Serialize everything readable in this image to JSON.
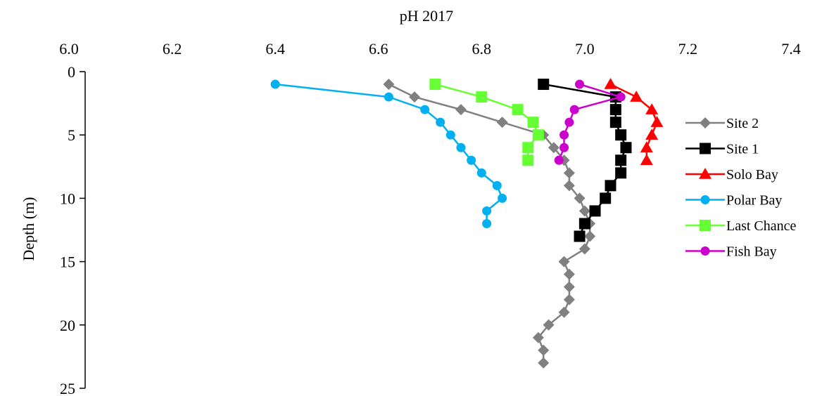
{
  "chart_data": {
    "type": "line",
    "title": "pH 2017",
    "xlabel": "pH 2017",
    "ylabel": "Depth (m)",
    "xlim": [
      6.0,
      7.4
    ],
    "ylim": [
      0,
      25
    ],
    "y_inverted": true,
    "x_axis_position": "top",
    "x_ticks": [
      "6.0",
      "6.2",
      "6.4",
      "6.6",
      "6.8",
      "7.0",
      "7.2",
      "7.4"
    ],
    "y_ticks": [
      "0",
      "5",
      "10",
      "15",
      "20",
      "25"
    ],
    "grid": false,
    "legend_position": "right",
    "series": [
      {
        "name": "Site 2",
        "color": "#808080",
        "marker": "diamond",
        "points": [
          [
            6.62,
            1
          ],
          [
            6.67,
            2
          ],
          [
            6.76,
            3
          ],
          [
            6.84,
            4
          ],
          [
            6.92,
            5
          ],
          [
            6.94,
            6
          ],
          [
            6.96,
            7
          ],
          [
            6.97,
            8
          ],
          [
            6.97,
            9
          ],
          [
            6.99,
            10
          ],
          [
            7.0,
            11
          ],
          [
            7.01,
            12
          ],
          [
            7.01,
            13
          ],
          [
            7.0,
            14
          ],
          [
            6.96,
            15
          ],
          [
            6.97,
            16
          ],
          [
            6.97,
            17
          ],
          [
            6.97,
            18
          ],
          [
            6.96,
            19
          ],
          [
            6.93,
            20
          ],
          [
            6.91,
            21
          ],
          [
            6.92,
            22
          ],
          [
            6.92,
            23
          ]
        ]
      },
      {
        "name": "Site 1",
        "color": "#000000",
        "marker": "square",
        "points": [
          [
            6.92,
            1
          ],
          [
            7.06,
            2
          ],
          [
            7.06,
            3
          ],
          [
            7.06,
            4
          ],
          [
            7.07,
            5
          ],
          [
            7.08,
            6
          ],
          [
            7.07,
            7
          ],
          [
            7.07,
            8
          ],
          [
            7.05,
            9
          ],
          [
            7.04,
            10
          ],
          [
            7.02,
            11
          ],
          [
            7.0,
            12
          ],
          [
            6.99,
            13
          ]
        ]
      },
      {
        "name": "Solo Bay",
        "color": "#ff0000",
        "marker": "triangle",
        "points": [
          [
            7.05,
            1
          ],
          [
            7.1,
            2
          ],
          [
            7.13,
            3
          ],
          [
            7.14,
            4
          ],
          [
            7.13,
            5
          ],
          [
            7.12,
            6
          ],
          [
            7.12,
            7
          ]
        ]
      },
      {
        "name": "Polar Bay",
        "color": "#00b0f0",
        "marker": "circle",
        "points": [
          [
            6.4,
            1
          ],
          [
            6.62,
            2
          ],
          [
            6.69,
            3
          ],
          [
            6.72,
            4
          ],
          [
            6.74,
            5
          ],
          [
            6.76,
            6
          ],
          [
            6.78,
            7
          ],
          [
            6.8,
            8
          ],
          [
            6.83,
            9
          ],
          [
            6.84,
            10
          ],
          [
            6.81,
            11
          ],
          [
            6.81,
            12
          ]
        ]
      },
      {
        "name": "Last Chance",
        "color": "#66ff33",
        "marker": "square",
        "points": [
          [
            6.71,
            1
          ],
          [
            6.8,
            2
          ],
          [
            6.87,
            3
          ],
          [
            6.9,
            4
          ],
          [
            6.91,
            5
          ],
          [
            6.89,
            6
          ],
          [
            6.89,
            7
          ]
        ]
      },
      {
        "name": "Fish Bay",
        "color": "#cc00cc",
        "marker": "circle",
        "points": [
          [
            6.99,
            1
          ],
          [
            7.07,
            2
          ],
          [
            6.98,
            3
          ],
          [
            6.97,
            4
          ],
          [
            6.96,
            5
          ],
          [
            6.96,
            6
          ],
          [
            6.95,
            7
          ]
        ]
      }
    ]
  }
}
